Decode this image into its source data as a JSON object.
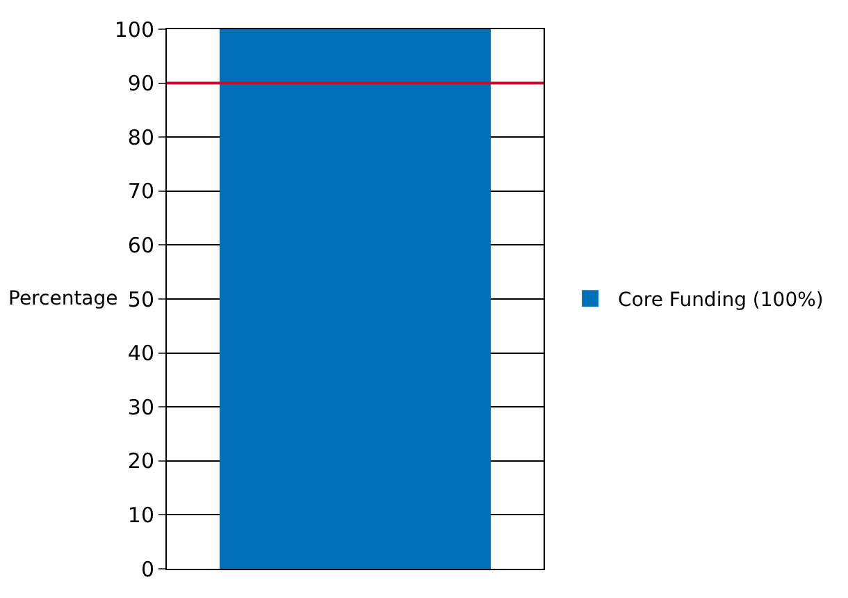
{
  "chart_data": {
    "type": "bar",
    "ylabel": "Percentage",
    "categories": [
      null
    ],
    "series": [
      {
        "name": "Core Funding (100%)",
        "color": "#0070b8",
        "values": [
          100
        ]
      }
    ],
    "ylim": [
      0,
      100
    ],
    "yticks": [
      0,
      10,
      20,
      30,
      40,
      50,
      60,
      70,
      80,
      90,
      100
    ],
    "grid": "y",
    "legend": "right",
    "ref_lines": [
      {
        "axis": "y",
        "value": 90,
        "color": "#c8102e"
      }
    ]
  }
}
